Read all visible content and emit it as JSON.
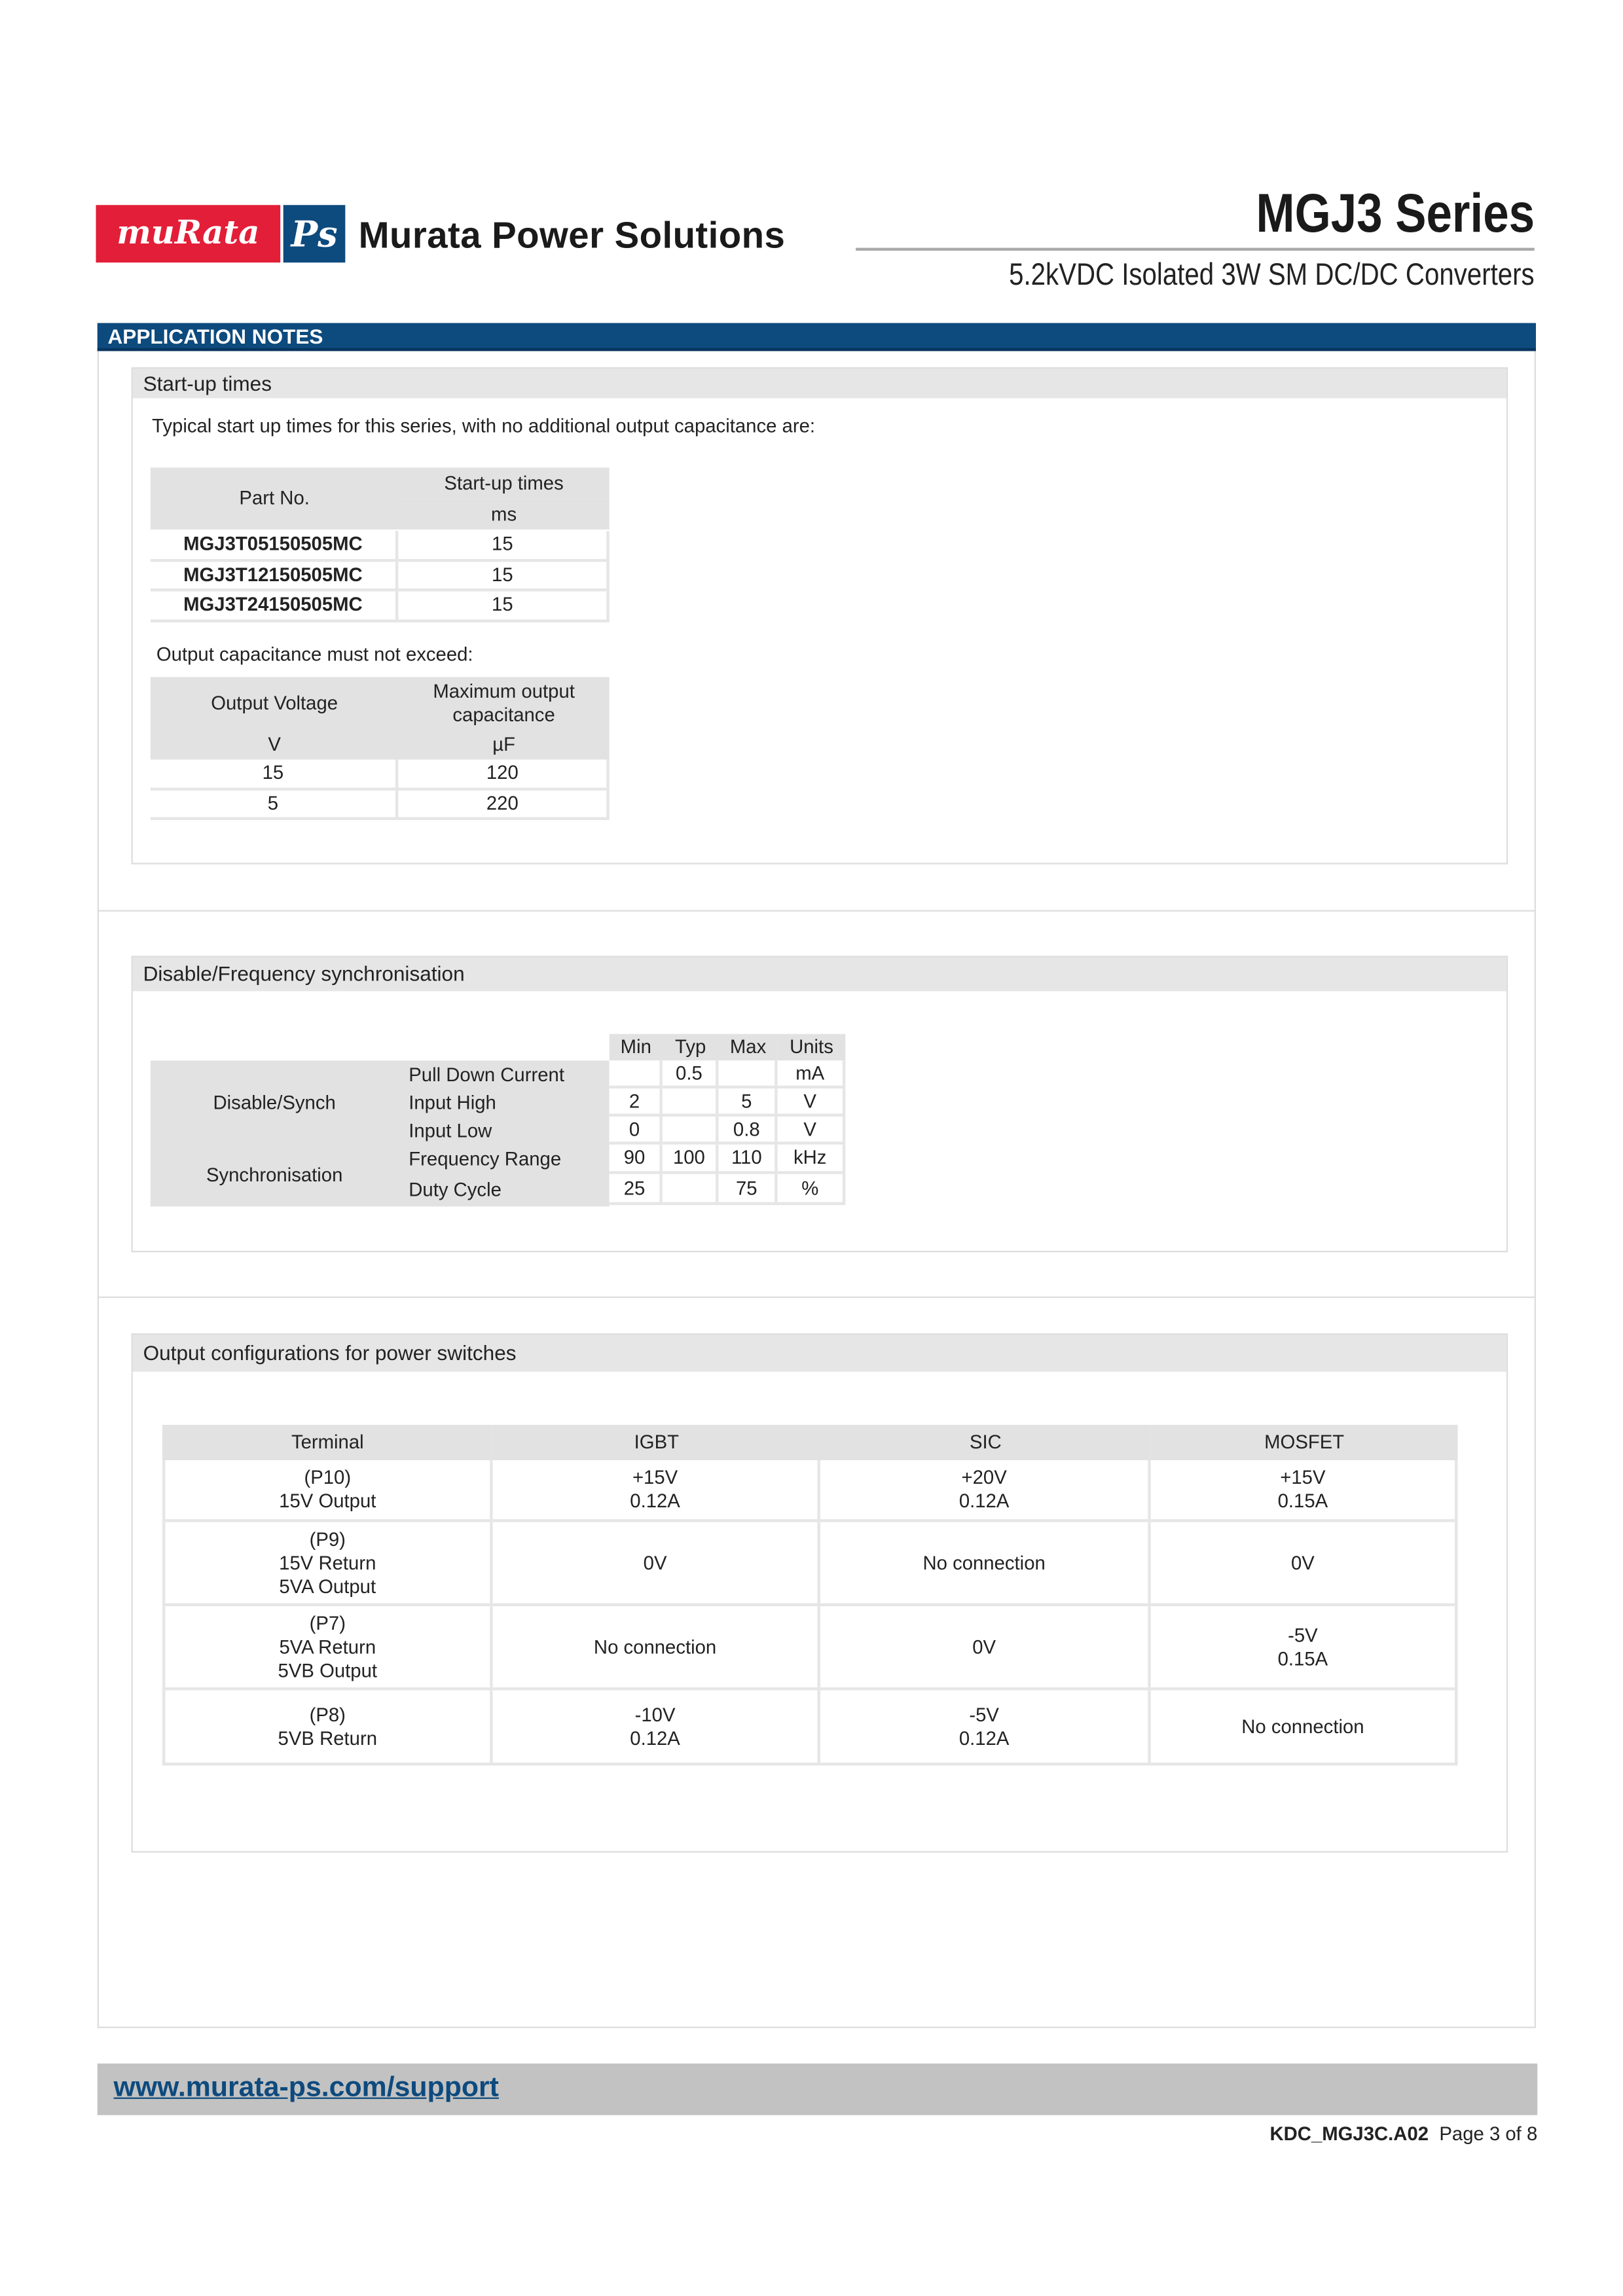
{
  "header": {
    "logo_murata": "muRata",
    "logo_ps": "Ps",
    "brand": "Murata Power Solutions",
    "series": "MGJ3 Series",
    "subtitle": "5.2kVDC Isolated 3W SM DC/DC Converters"
  },
  "banner": "APPLICATION NOTES",
  "startup": {
    "title": "Start-up times",
    "intro": "Typical start up times for this series, with no additional output capacitance are:",
    "headers": [
      "Part No.",
      "Start-up times",
      "ms"
    ],
    "rows": [
      [
        "MGJ3T05150505MC",
        "15"
      ],
      [
        "MGJ3T12150505MC",
        "15"
      ],
      [
        "MGJ3T24150505MC",
        "15"
      ]
    ],
    "cap_note": "Output capacitance must not exceed:",
    "cap_headers": [
      "Output Voltage",
      "Maximum output capacitance",
      "V",
      "µF"
    ],
    "cap_rows": [
      [
        "15",
        "120"
      ],
      [
        "5",
        "220"
      ]
    ]
  },
  "disable": {
    "title": "Disable/Frequency synchronisation",
    "headers": [
      "Min",
      "Typ",
      "Max",
      "Units"
    ],
    "groups": [
      "Disable/Synch",
      "Synchronisation"
    ],
    "rows": [
      [
        "Pull Down Current",
        "",
        "0.5",
        "",
        "mA"
      ],
      [
        "Input High",
        "2",
        "",
        "5",
        "V"
      ],
      [
        "Input Low",
        "0",
        "",
        "0.8",
        "V"
      ],
      [
        "Frequency Range",
        "90",
        "100",
        "110",
        "kHz"
      ],
      [
        "Duty Cycle",
        "25",
        "",
        "75",
        "%"
      ]
    ]
  },
  "outputs": {
    "title": "Output configurations for power switches",
    "headers": [
      "Terminal",
      "IGBT",
      "SIC",
      "MOSFET"
    ],
    "rows": [
      [
        "(P10)\n15V Output",
        "+15V\n0.12A",
        "+20V\n0.12A",
        "+15V\n0.15A"
      ],
      [
        "(P9)\n15V Return\n5VA Output",
        "0V",
        "No connection",
        "0V"
      ],
      [
        "(P7)\n5VA Return\n5VB Output",
        "No connection",
        "0V",
        "-5V\n0.15A"
      ],
      [
        "(P8)\n5VB Return",
        "-10V\n0.12A",
        "-5V\n0.12A",
        "No connection"
      ]
    ]
  },
  "footer": {
    "link": "www.murata-ps.com/support",
    "doc_code": "KDC_MGJ3C.A02",
    "page": "Page 3 of 8"
  },
  "colors": {
    "brand_red": "#e31e38",
    "brand_blue": "#0d4a7e"
  }
}
